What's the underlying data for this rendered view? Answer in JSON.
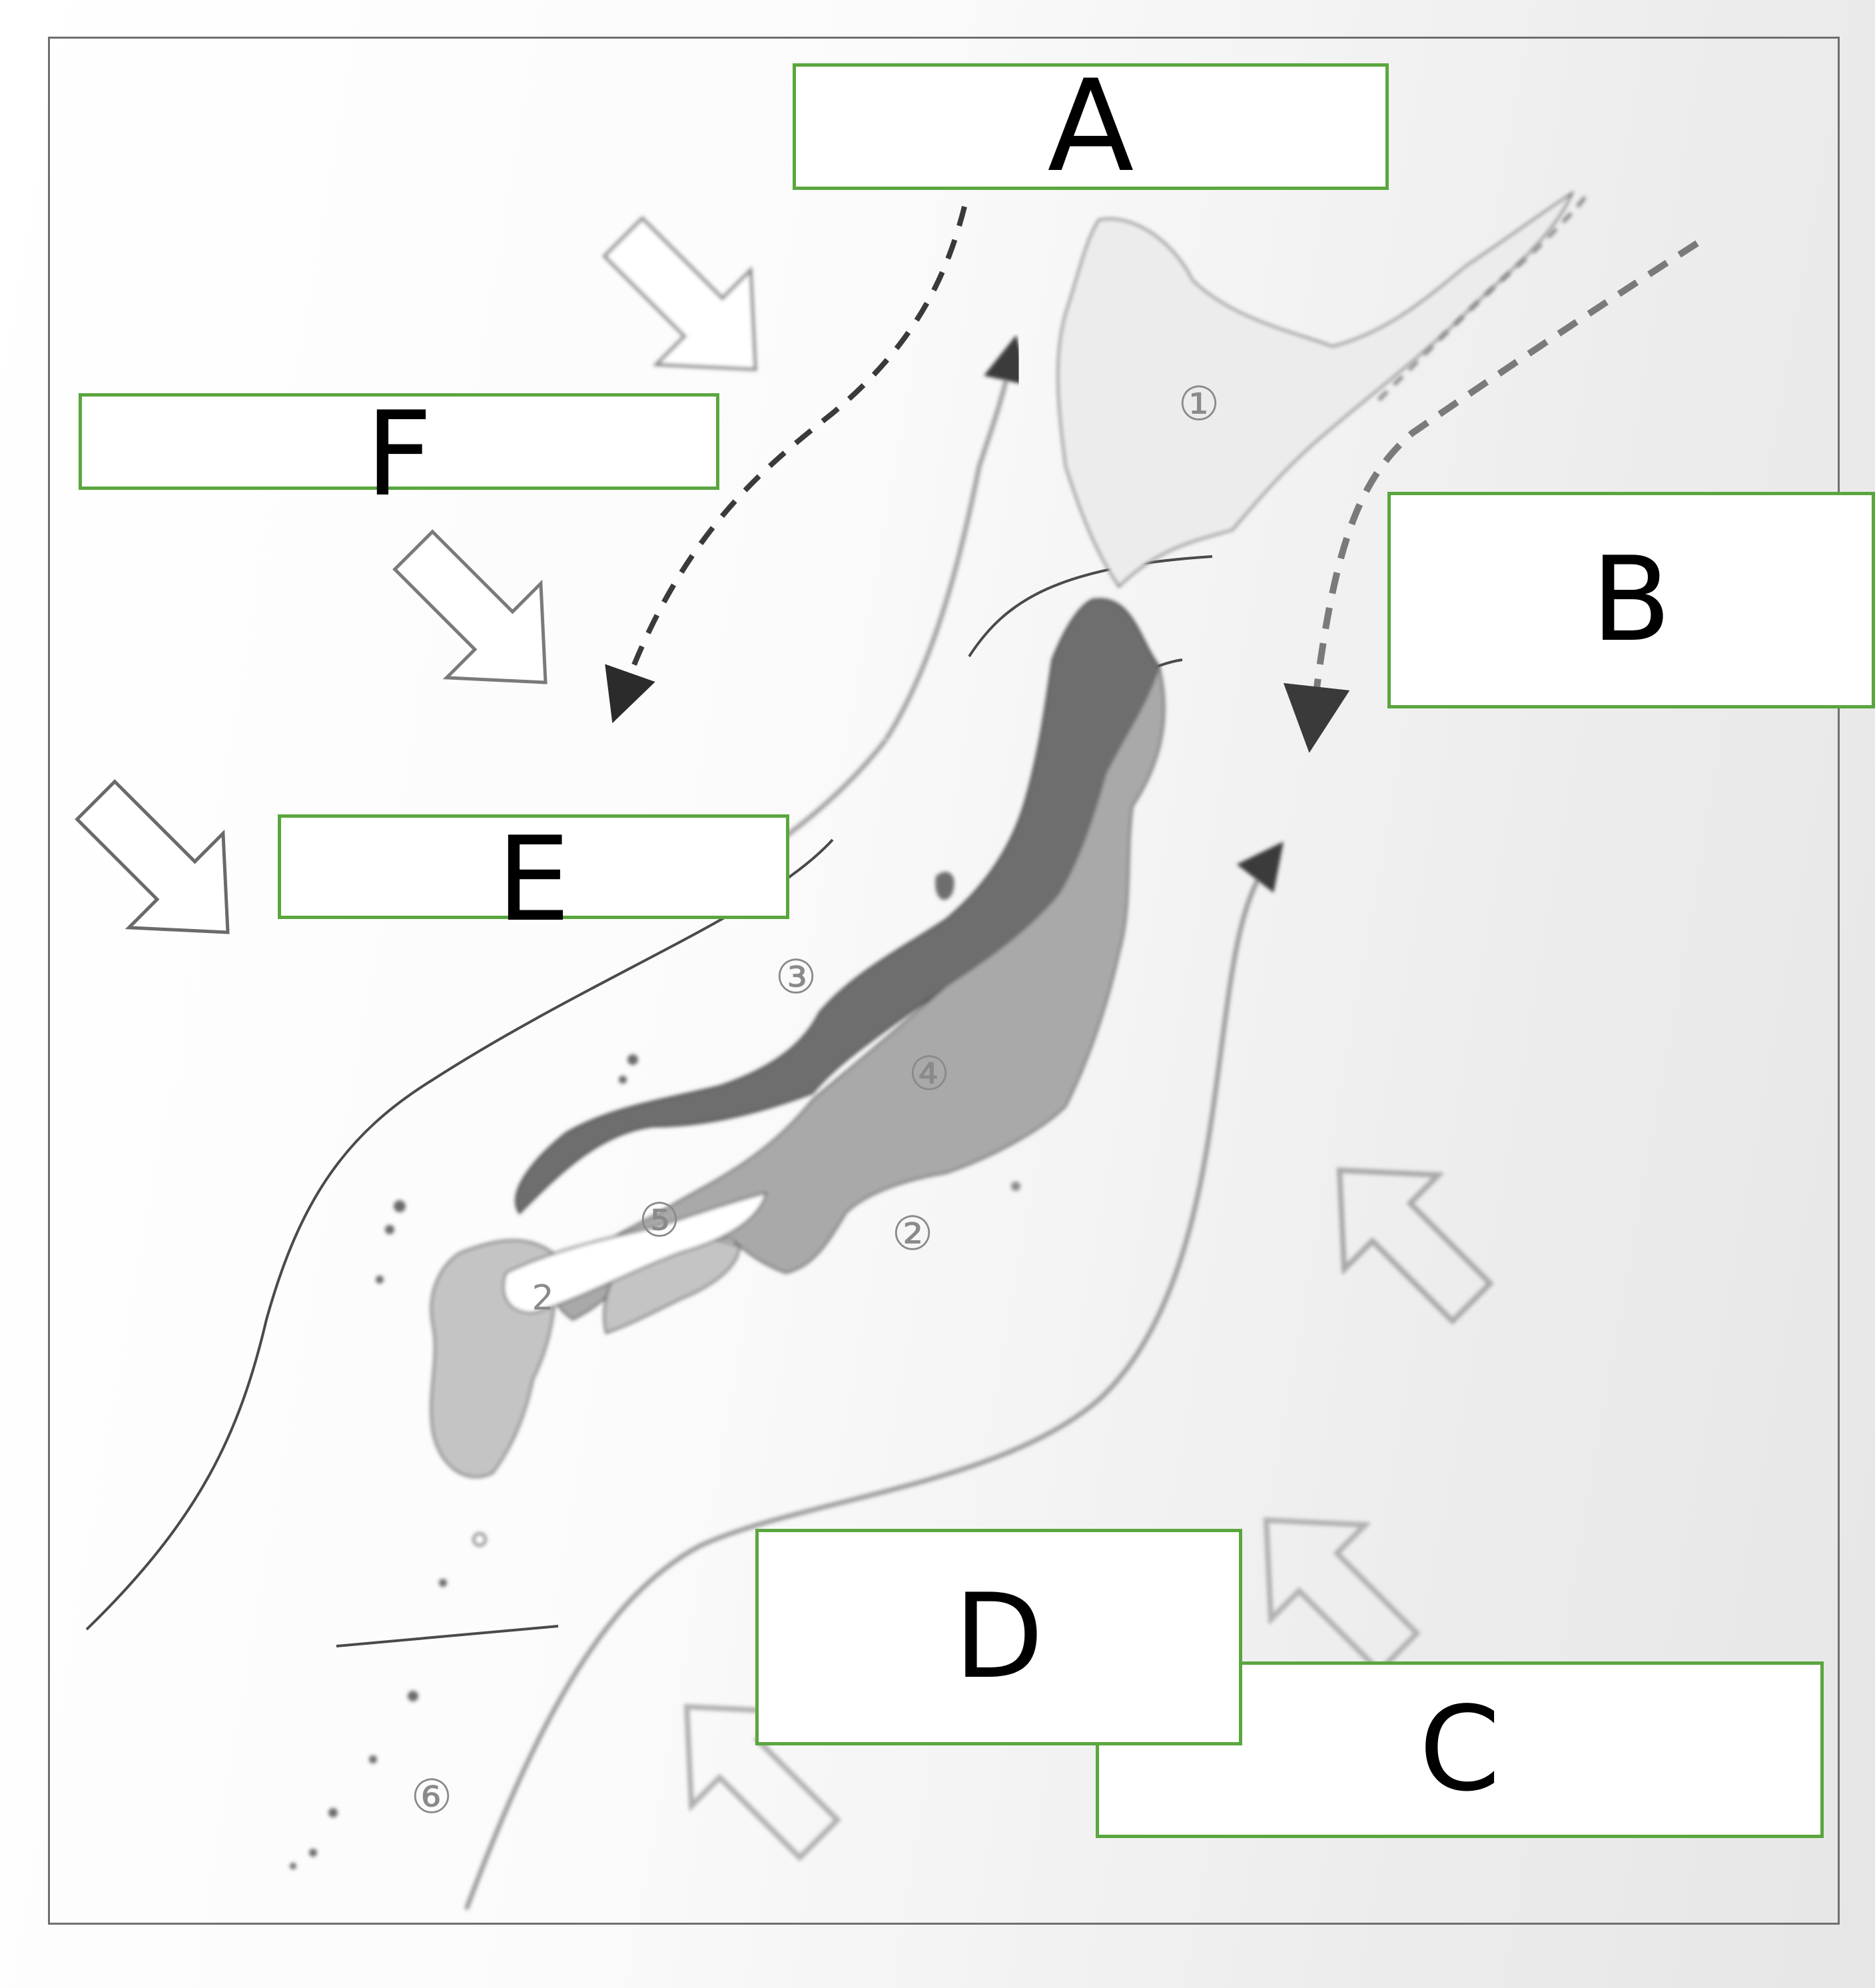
{
  "labels": {
    "A": "A",
    "B": "B",
    "C": "C",
    "D": "D",
    "E": "E",
    "F": "F"
  },
  "region_numbers": {
    "r1": "①",
    "r2a": "②",
    "r2b": "2",
    "r3": "③",
    "r4": "④",
    "r5": "⑤",
    "r6": "⑥"
  },
  "colors": {
    "label_border": "#5aa63e",
    "land_dark": "#6e6e6e",
    "land_mid": "#a9a9a9",
    "land_light": "#c4c4c4"
  },
  "icons": [
    "wind-arrow-northwest",
    "wind-arrow-southeast",
    "cold-current-arrow",
    "warm-current-arrow"
  ]
}
